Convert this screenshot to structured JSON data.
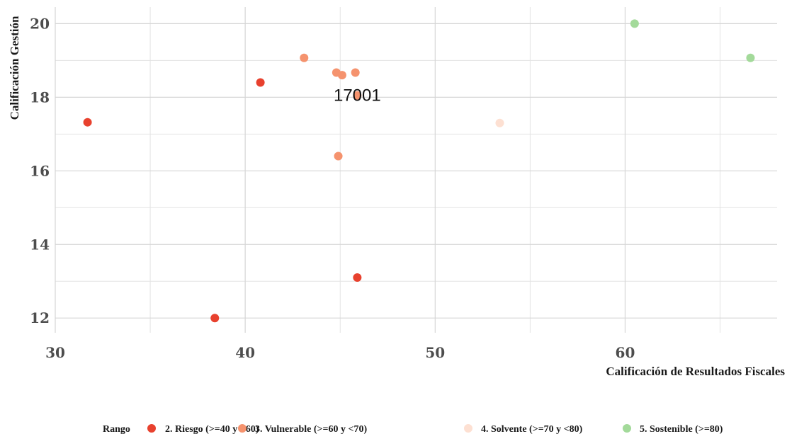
{
  "chart_data": {
    "type": "scatter",
    "xlabel": "Calificación de Resultados Fiscales",
    "ylabel": "Calificación Gestión",
    "xlim": [
      30,
      68
    ],
    "ylim": [
      11.6,
      20.45
    ],
    "x_ticks": [
      30,
      40,
      50,
      60
    ],
    "y_ticks": [
      12,
      14,
      16,
      18,
      20
    ],
    "grid": true,
    "legend": {
      "position": "bottom",
      "title": "Rango",
      "entries": [
        {
          "label": "2. Riesgo (>=40 y <60)",
          "color": "#e8412e"
        },
        {
          "label": "3. Vulnerable (>=60 y <70)",
          "color": "#f5936e"
        },
        {
          "label": "4. Solvente (>=70 y <80)",
          "color": "#fde0d2"
        },
        {
          "label": "5. Sostenible (>=80)",
          "color": "#a3da9a"
        }
      ]
    },
    "series": [
      {
        "name": "2. Riesgo (>=40 y <60)",
        "color": "#e8412e",
        "points": [
          {
            "x": 31.7,
            "y": 17.32
          },
          {
            "x": 40.8,
            "y": 18.4
          },
          {
            "x": 38.4,
            "y": 12.0
          },
          {
            "x": 45.9,
            "y": 13.1
          }
        ]
      },
      {
        "name": "3. Vulnerable (>=60 y <70)",
        "color": "#f5936e",
        "points": [
          {
            "x": 43.1,
            "y": 19.07
          },
          {
            "x": 44.8,
            "y": 18.67
          },
          {
            "x": 45.1,
            "y": 18.6
          },
          {
            "x": 45.8,
            "y": 18.67
          },
          {
            "x": 45.9,
            "y": 18.05
          },
          {
            "x": 44.9,
            "y": 16.4
          }
        ]
      },
      {
        "name": "4. Solvente (>=70 y <80)",
        "color": "#fde0d2",
        "points": [
          {
            "x": 53.4,
            "y": 17.3
          }
        ]
      },
      {
        "name": "5. Sostenible (>=80)",
        "color": "#a3da9a",
        "points": [
          {
            "x": 60.5,
            "y": 20.0
          },
          {
            "x": 66.6,
            "y": 19.07
          }
        ]
      }
    ],
    "annotations": [
      {
        "text": "17001",
        "x": 45.9,
        "y": 18.05
      }
    ]
  }
}
